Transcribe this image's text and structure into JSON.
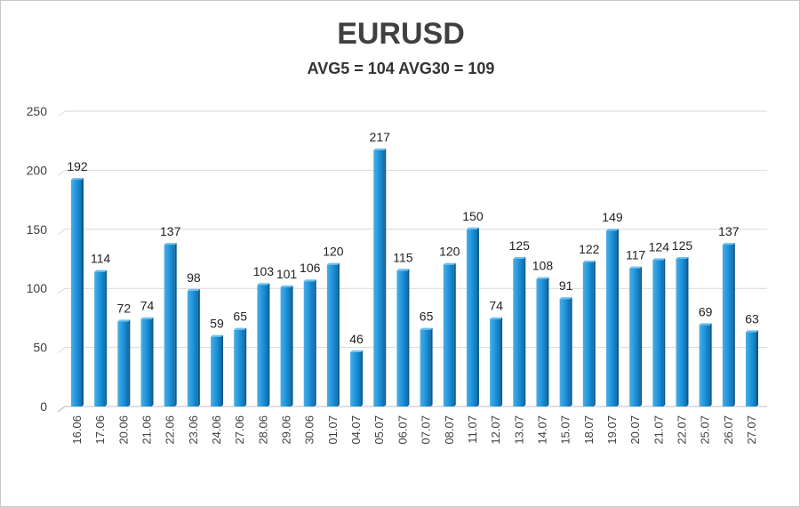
{
  "chart_data": {
    "type": "bar",
    "title": "EURUSD",
    "subtitle": "AVG5 = 104 AVG30 = 109",
    "xlabel": "",
    "ylabel": "",
    "ylim": [
      0,
      250
    ],
    "yticks": [
      0,
      50,
      100,
      150,
      200,
      250
    ],
    "grid": true,
    "categories": [
      "16.06",
      "17.06",
      "20.06",
      "21.06",
      "22.06",
      "23.06",
      "24.06",
      "27.06",
      "28.06",
      "29.06",
      "30.06",
      "01.07",
      "04.07",
      "05.07",
      "06.07",
      "07.07",
      "08.07",
      "11.07",
      "12.07",
      "13.07",
      "14.07",
      "15.07",
      "18.07",
      "19.07",
      "20.07",
      "21.07",
      "22.07",
      "25.07",
      "26.07",
      "27.07"
    ],
    "values": [
      192,
      114,
      72,
      74,
      137,
      98,
      59,
      65,
      103,
      101,
      106,
      120,
      46,
      217,
      115,
      65,
      120,
      150,
      74,
      125,
      108,
      91,
      122,
      149,
      117,
      124,
      125,
      69,
      137,
      63
    ],
    "bar_color": "#1a8fd6"
  }
}
